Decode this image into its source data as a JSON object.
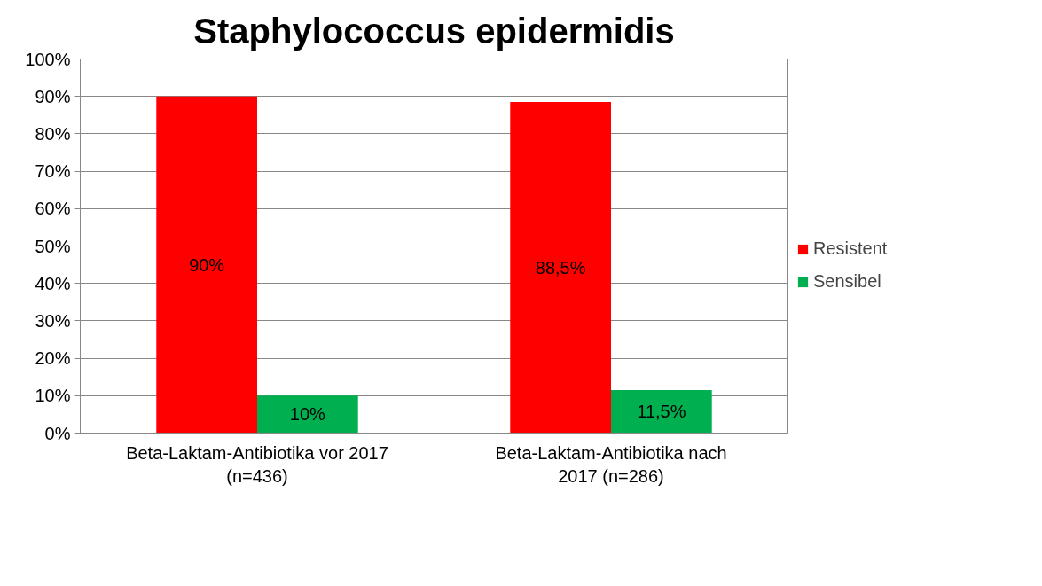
{
  "chart_data": {
    "type": "bar",
    "title": "Staphylococcus epidermidis",
    "categories": [
      "Beta-Laktam-Antibiotika vor 2017\n(n=436)",
      "Beta-Laktam-Antibiotika nach\n2017 (n=286)"
    ],
    "series": [
      {
        "name": "Resistent",
        "color": "#ff0000",
        "values": [
          90,
          88.5
        ],
        "value_labels": [
          "90%",
          "88,5%"
        ]
      },
      {
        "name": "Sensibel",
        "color": "#00b050",
        "values": [
          10,
          11.5
        ],
        "value_labels": [
          "10%",
          "11,5%"
        ]
      }
    ],
    "ylim": [
      0,
      100
    ],
    "yticks": [
      {
        "value": 0,
        "label": "0%"
      },
      {
        "value": 10,
        "label": "10%"
      },
      {
        "value": 20,
        "label": "20%"
      },
      {
        "value": 30,
        "label": "30%"
      },
      {
        "value": 40,
        "label": "40%"
      },
      {
        "value": 50,
        "label": "50%"
      },
      {
        "value": 60,
        "label": "60%"
      },
      {
        "value": 70,
        "label": "70%"
      },
      {
        "value": 80,
        "label": "80%"
      },
      {
        "value": 90,
        "label": "90%"
      },
      {
        "value": 100,
        "label": "100%"
      }
    ],
    "grid": "y",
    "legend": "right"
  }
}
